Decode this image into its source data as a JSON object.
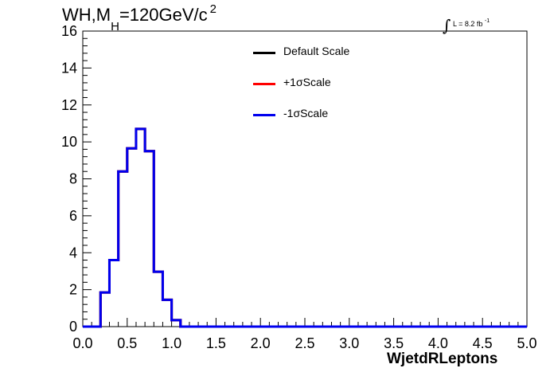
{
  "title": {
    "prefix": "WH,M",
    "sub": "H",
    "mid": "=120GeV/c",
    "sup": "2"
  },
  "lumi": {
    "int": "∫",
    "text": "L = 8.2 fb",
    "sup": "-1"
  },
  "chart_data": {
    "type": "step-histogram",
    "xlabel": "WjetdRLeptons",
    "ylabel": "",
    "xlim": [
      0,
      5
    ],
    "ylim": [
      0,
      16
    ],
    "x_ticks": [
      "0.0",
      "0.5",
      "1.0",
      "1.5",
      "2.0",
      "2.5",
      "3.0",
      "3.5",
      "4.0",
      "4.5",
      "5.0"
    ],
    "y_ticks": [
      "0",
      "2",
      "4",
      "6",
      "8",
      "10",
      "12",
      "14",
      "16"
    ],
    "bin_edges": [
      0.0,
      0.1,
      0.2,
      0.3,
      0.4,
      0.5,
      0.6,
      0.7,
      0.8,
      0.9,
      1.0,
      1.1,
      1.2,
      1.3,
      1.4,
      1.5,
      1.6,
      1.7,
      1.8,
      1.9,
      2.0,
      2.1,
      2.2,
      2.3,
      2.4,
      2.5,
      2.6,
      2.7,
      2.8,
      2.9,
      3.0,
      3.1,
      3.2,
      3.3,
      3.4,
      3.5,
      3.6,
      3.7,
      3.8,
      3.9,
      4.0,
      4.1,
      4.2,
      4.3,
      4.4,
      4.5,
      4.6,
      4.7,
      4.8,
      4.9,
      5.0
    ],
    "series": [
      {
        "name": "Default Scale",
        "color": "#000000",
        "values": [
          0,
          0,
          1.85,
          3.6,
          8.4,
          9.65,
          10.7,
          9.5,
          2.97,
          1.45,
          0.35,
          0,
          0,
          0,
          0,
          0,
          0,
          0,
          0,
          0,
          0,
          0,
          0,
          0,
          0,
          0,
          0,
          0,
          0,
          0,
          0,
          0,
          0,
          0,
          0,
          0,
          0,
          0,
          0,
          0,
          0,
          0,
          0,
          0,
          0,
          0,
          0,
          0,
          0,
          0
        ]
      },
      {
        "name": "+1σScale",
        "color": "#ff0000",
        "values": [
          0,
          0,
          1.85,
          3.6,
          8.4,
          9.65,
          10.7,
          9.5,
          2.97,
          1.45,
          0.35,
          0,
          0,
          0,
          0,
          0,
          0,
          0,
          0,
          0,
          0,
          0,
          0,
          0,
          0,
          0,
          0,
          0,
          0,
          0,
          0,
          0,
          0,
          0,
          0,
          0,
          0,
          0,
          0,
          0,
          0,
          0,
          0,
          0,
          0,
          0,
          0,
          0,
          0,
          0
        ]
      },
      {
        "name": "-1σScale",
        "color": "#0000ee",
        "values": [
          0,
          0,
          1.85,
          3.6,
          8.4,
          9.65,
          10.7,
          9.5,
          2.97,
          1.45,
          0.35,
          0,
          0,
          0,
          0,
          0,
          0,
          0,
          0,
          0,
          0,
          0,
          0,
          0,
          0,
          0,
          0,
          0,
          0,
          0,
          0,
          0,
          0,
          0,
          0,
          0,
          0,
          0,
          0,
          0,
          0,
          0,
          0,
          0,
          0,
          0,
          0,
          0,
          0,
          0
        ]
      }
    ]
  }
}
